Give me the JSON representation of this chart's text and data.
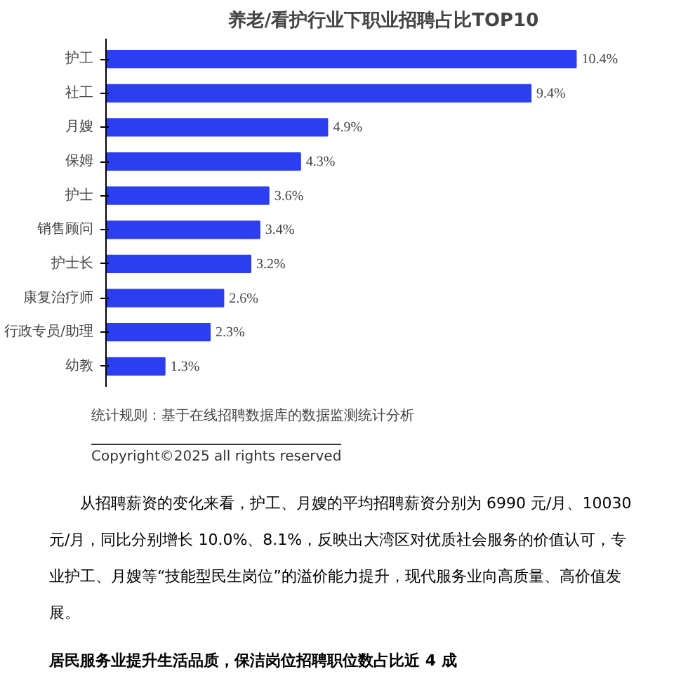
{
  "chart_data": {
    "type": "bar",
    "orientation": "horizontal",
    "title": "养老/看护行业下职业招聘占比TOP10",
    "categories": [
      "护工",
      "社工",
      "月嫂",
      "保姆",
      "护士",
      "销售顾问",
      "护士长",
      "康复治疗师",
      "行政专员/助理",
      "幼教"
    ],
    "values": [
      10.4,
      9.4,
      4.9,
      4.3,
      3.6,
      3.4,
      3.2,
      2.6,
      2.3,
      1.3
    ],
    "value_labels": [
      "10.4%",
      "9.4%",
      "4.9%",
      "4.3%",
      "3.6%",
      "3.4%",
      "3.2%",
      "2.6%",
      "2.3%",
      "1.3%"
    ],
    "color": "#2b3ff0",
    "annotations": [
      "统计规则：基于在线招聘数据库的数据监测统计分析",
      "Copyright©2025 all rights reserved",
      "从招聘薪资的变化来看，护工、月嫂的平均招聘薪资分别为 6990 元/月、10030 元/月，同比分别增长 10.0%、8.1%，反映出大湾区对优质社会服务的价值认可，专业护工、月嫂等“技能型民生岗位”的溢价能力提升，现代服务业向高质量、高价值发展。",
      "居民服务业提升生活品质，保洁岗位招聘职位数占比近 4 成"
    ]
  }
}
